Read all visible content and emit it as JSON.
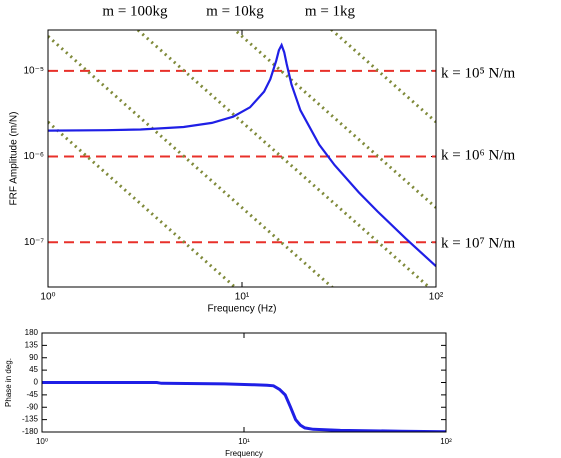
{
  "chart_data": [
    {
      "type": "line",
      "x_label": "Frequency (Hz)",
      "y_label": "FRF Amplitude (m/N)",
      "log_x": true,
      "log_y": true,
      "xlim": [
        1,
        100
      ],
      "xticks": [
        {
          "value": 1,
          "label": "10⁰"
        },
        {
          "value": 10,
          "label": "10¹"
        },
        {
          "value": 100,
          "label": "10²"
        }
      ],
      "ylim": [
        3e-08,
        3e-05
      ],
      "yticks": [
        {
          "value": 1e-07,
          "label": "10⁻⁷"
        },
        {
          "value": 1e-06,
          "label": "10⁻⁶"
        },
        {
          "value": 1e-05,
          "label": "10⁻⁵"
        }
      ],
      "annotations": [
        "m = 100kg",
        "m = 10kg",
        "m = 1kg",
        "k = 10⁵ N/m",
        "k = 10⁶ N/m",
        "k = 10⁷ N/m"
      ],
      "series": [
        {
          "color": "#e8302a",
          "style": "dashed",
          "x": [
            1,
            100
          ],
          "values": [
            1e-05,
            1e-05
          ]
        },
        {
          "color": "#e8302a",
          "style": "dashed",
          "x": [
            1,
            100
          ],
          "values": [
            1e-06,
            1e-06
          ]
        },
        {
          "color": "#e8302a",
          "style": "dashed",
          "x": [
            1,
            100
          ],
          "values": [
            1e-07,
            1e-07
          ]
        },
        {
          "color": "#7f8a3a",
          "style": "dotted",
          "x": [
            1,
            100
          ],
          "values": [
            2.533e-06,
            2.533e-10
          ]
        },
        {
          "color": "#7f8a3a",
          "style": "dotted",
          "x": [
            1,
            100
          ],
          "values": [
            2.533e-05,
            2.533e-09
          ]
        },
        {
          "color": "#7f8a3a",
          "style": "dotted",
          "x": [
            1,
            100
          ],
          "values": [
            0.0002533,
            2.533e-08
          ]
        },
        {
          "color": "#7f8a3a",
          "style": "dotted",
          "x": [
            1,
            100
          ],
          "values": [
            0.002533,
            2.533e-07
          ]
        },
        {
          "color": "#7f8a3a",
          "style": "dotted",
          "x": [
            1,
            100
          ],
          "values": [
            0.02533,
            2.533e-06
          ]
        },
        {
          "color": "#1f1fe6",
          "style": "solid",
          "x": [
            1,
            2,
            3,
            5,
            7,
            9,
            11,
            13,
            14,
            15,
            15.5,
            16,
            16.5,
            17,
            18,
            20,
            25,
            30,
            40,
            50,
            70,
            100
          ],
          "values": [
            2.008e-06,
            2.03e-06,
            2.07e-06,
            2.215e-06,
            2.47e-06,
            2.92e-06,
            3.76e-06,
            5.73e-06,
            8e-06,
            1.31e-05,
            1.74e-05,
            2e-05,
            1.65e-05,
            1.2e-05,
            6.94e-06,
            3.47e-06,
            1.38e-06,
            7.94e-07,
            3.81e-07,
            2.28e-07,
            1.1e-07,
            5.25e-08
          ]
        }
      ]
    },
    {
      "type": "line",
      "x_label": "Frequency",
      "y_label": "Phase in deg.",
      "log_x": true,
      "log_y": false,
      "xlim": [
        1,
        100
      ],
      "xticks": [
        {
          "value": 1,
          "label": "10⁰"
        },
        {
          "value": 10,
          "label": "10¹"
        },
        {
          "value": 100,
          "label": "10²"
        }
      ],
      "ylim": [
        -180,
        180
      ],
      "yticks": [
        -180,
        -135,
        -90,
        -45,
        0,
        45,
        90,
        135,
        180
      ],
      "series": [
        {
          "color": "#1f1fe6",
          "style": "thick",
          "x": [
            1,
            3.7,
            3.9,
            8,
            11,
            13,
            14,
            15,
            16,
            17,
            18,
            19,
            20,
            22,
            30,
            60,
            100
          ],
          "values": [
            0,
            0,
            -3,
            -5,
            -8,
            -10,
            -12,
            -25,
            -45,
            -90,
            -135,
            -155,
            -165,
            -170,
            -174,
            -177,
            -179
          ]
        }
      ]
    }
  ]
}
